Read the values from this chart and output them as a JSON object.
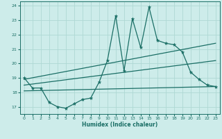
{
  "xlabel": "Humidex (Indice chaleur)",
  "bg_color": "#cdecea",
  "line_color": "#1a6e65",
  "grid_color": "#aed8d4",
  "xlim": [
    -0.5,
    23.5
  ],
  "ylim": [
    16.5,
    24.3
  ],
  "x_ticks": [
    0,
    1,
    2,
    3,
    4,
    5,
    6,
    7,
    8,
    9,
    10,
    11,
    12,
    13,
    14,
    15,
    16,
    17,
    18,
    19,
    20,
    21,
    22,
    23
  ],
  "y_ticks": [
    17,
    18,
    19,
    20,
    21,
    22,
    23,
    24
  ],
  "series1_x": [
    0,
    1,
    2,
    3,
    4,
    5,
    6,
    7,
    8,
    9,
    10,
    11,
    12,
    13,
    14,
    15,
    16,
    17,
    18,
    19,
    20,
    21,
    22,
    23
  ],
  "series1_y": [
    19.0,
    18.3,
    18.3,
    17.3,
    17.0,
    16.9,
    17.2,
    17.5,
    17.6,
    18.7,
    20.2,
    23.3,
    19.5,
    23.1,
    21.1,
    23.9,
    21.6,
    21.4,
    21.3,
    20.8,
    19.4,
    18.9,
    18.5,
    18.4
  ],
  "series2_x": [
    0,
    23
  ],
  "series2_y": [
    18.9,
    21.4
  ],
  "series3_x": [
    0,
    23
  ],
  "series3_y": [
    18.5,
    20.2
  ],
  "series4_x": [
    0,
    23
  ],
  "series4_y": [
    18.1,
    18.4
  ]
}
